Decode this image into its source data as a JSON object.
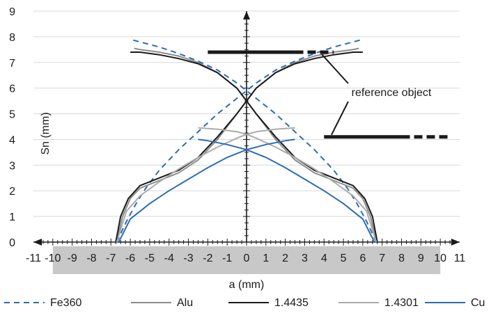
{
  "chart_data": {
    "type": "line",
    "title": "",
    "xlabel": "a (mm)",
    "ylabel": "Sn (mm)",
    "xlim": [
      -11,
      11
    ],
    "ylim": [
      0,
      9
    ],
    "x_ticks": [
      -11,
      -10,
      -9,
      -8,
      -7,
      -6,
      -5,
      -4,
      -3,
      -2,
      -1,
      0,
      1,
      2,
      3,
      4,
      5,
      6,
      7,
      8,
      9,
      10,
      11
    ],
    "y_ticks": [
      0,
      1,
      2,
      3,
      4,
      5,
      6,
      7,
      8,
      9
    ],
    "grid": "horizontal",
    "legend_position": "bottom",
    "shaded_band": {
      "x": [
        -10,
        10
      ],
      "color": "#c8c8c8"
    },
    "series": [
      {
        "name": "Fe360",
        "color": "#2b6cb5",
        "dash": "dashed",
        "curves": [
          [
            [
              -6.7,
              0
            ],
            [
              -6.2,
              0.8
            ],
            [
              -5.7,
              1.5
            ],
            [
              -5.2,
              2.1
            ],
            [
              -4.5,
              2.8
            ],
            [
              -3.5,
              3.6
            ],
            [
              -2.5,
              4.3
            ],
            [
              -1.5,
              5.0
            ],
            [
              -0.5,
              5.6
            ],
            [
              0,
              5.9
            ],
            [
              0.5,
              6.2
            ],
            [
              1.5,
              6.7
            ],
            [
              2.5,
              7.05
            ],
            [
              3.5,
              7.35
            ],
            [
              4.5,
              7.6
            ],
            [
              5.5,
              7.8
            ],
            [
              6,
              7.9
            ]
          ],
          [
            [
              6.7,
              0
            ],
            [
              6.2,
              0.8
            ],
            [
              5.7,
              1.5
            ],
            [
              5.2,
              2.1
            ],
            [
              4.5,
              2.8
            ],
            [
              3.5,
              3.6
            ],
            [
              2.5,
              4.3
            ],
            [
              1.5,
              5.0
            ],
            [
              0.5,
              5.6
            ],
            [
              0,
              5.9
            ],
            [
              -0.5,
              6.2
            ],
            [
              -1.5,
              6.7
            ],
            [
              -2.5,
              7.05
            ],
            [
              -3.5,
              7.35
            ],
            [
              -4.5,
              7.6
            ],
            [
              -5.5,
              7.8
            ],
            [
              -6,
              7.9
            ]
          ]
        ]
      },
      {
        "name": "Alu",
        "color": "#8c8c8c",
        "dash": "solid",
        "curves": [
          [
            [
              -6.7,
              0
            ],
            [
              -6.4,
              1.0
            ],
            [
              -6.0,
              1.7
            ],
            [
              -5.5,
              2.1
            ],
            [
              -4.5,
              2.4
            ],
            [
              -3.5,
              2.7
            ],
            [
              -2.5,
              3.2
            ],
            [
              -1.5,
              4.0
            ],
            [
              -0.5,
              5.0
            ],
            [
              0,
              5.5
            ],
            [
              0.5,
              6.0
            ],
            [
              1.5,
              6.6
            ],
            [
              2.5,
              7.0
            ],
            [
              3.5,
              7.25
            ],
            [
              4.5,
              7.4
            ],
            [
              5.5,
              7.5
            ],
            [
              5.8,
              7.55
            ]
          ],
          [
            [
              6.7,
              0
            ],
            [
              6.4,
              1.0
            ],
            [
              6.0,
              1.7
            ],
            [
              5.5,
              2.1
            ],
            [
              4.5,
              2.4
            ],
            [
              3.5,
              2.7
            ],
            [
              2.5,
              3.2
            ],
            [
              1.5,
              4.0
            ],
            [
              0.5,
              5.0
            ],
            [
              0,
              5.5
            ],
            [
              -0.5,
              6.0
            ],
            [
              -1.5,
              6.6
            ],
            [
              -2.5,
              7.0
            ],
            [
              -3.5,
              7.25
            ],
            [
              -4.5,
              7.4
            ],
            [
              -5.5,
              7.5
            ],
            [
              -5.8,
              7.55
            ]
          ]
        ]
      },
      {
        "name": "1.4435",
        "color": "#1a1a1a",
        "dash": "solid",
        "curves": [
          [
            [
              -6.75,
              0
            ],
            [
              -6.5,
              1.0
            ],
            [
              -6.1,
              1.7
            ],
            [
              -5.5,
              2.2
            ],
            [
              -4.5,
              2.5
            ],
            [
              -3.5,
              2.8
            ],
            [
              -2.5,
              3.3
            ],
            [
              -1.5,
              4.1
            ],
            [
              -0.5,
              5.0
            ],
            [
              0,
              5.5
            ],
            [
              0.5,
              6.0
            ],
            [
              1.5,
              6.6
            ],
            [
              2.5,
              6.95
            ],
            [
              3.5,
              7.15
            ],
            [
              4.5,
              7.3
            ],
            [
              5.5,
              7.4
            ],
            [
              6.0,
              7.4
            ]
          ],
          [
            [
              6.75,
              0
            ],
            [
              6.5,
              1.0
            ],
            [
              6.1,
              1.7
            ],
            [
              5.5,
              2.2
            ],
            [
              4.5,
              2.5
            ],
            [
              3.5,
              2.8
            ],
            [
              2.5,
              3.3
            ],
            [
              1.5,
              4.1
            ],
            [
              0.5,
              5.0
            ],
            [
              0,
              5.5
            ],
            [
              -0.5,
              6.0
            ],
            [
              -1.5,
              6.6
            ],
            [
              -2.5,
              6.95
            ],
            [
              -3.5,
              7.15
            ],
            [
              -4.5,
              7.3
            ],
            [
              -5.5,
              7.4
            ],
            [
              -6.0,
              7.4
            ]
          ]
        ]
      },
      {
        "name": "1.4301",
        "color": "#ababab",
        "dash": "solid",
        "curves": [
          [
            [
              -6.7,
              0
            ],
            [
              -6.2,
              1.2
            ],
            [
              -5.5,
              1.8
            ],
            [
              -4.5,
              2.35
            ],
            [
              -3.5,
              2.85
            ],
            [
              -2.5,
              3.3
            ],
            [
              -1.5,
              3.7
            ],
            [
              -0.5,
              4.05
            ],
            [
              0,
              4.2
            ],
            [
              0.5,
              4.3
            ],
            [
              1.5,
              4.4
            ],
            [
              2.5,
              4.45
            ]
          ],
          [
            [
              6.7,
              0
            ],
            [
              6.2,
              1.2
            ],
            [
              5.5,
              1.8
            ],
            [
              4.5,
              2.35
            ],
            [
              3.5,
              2.85
            ],
            [
              2.5,
              3.3
            ],
            [
              1.5,
              3.7
            ],
            [
              0.5,
              4.05
            ],
            [
              0,
              4.2
            ],
            [
              -0.5,
              4.3
            ],
            [
              -1.5,
              4.4
            ],
            [
              -2.5,
              4.45
            ]
          ]
        ]
      },
      {
        "name": "Cu",
        "color": "#2b6cb5",
        "dash": "solid",
        "curves": [
          [
            [
              -6.6,
              0
            ],
            [
              -6.0,
              0.9
            ],
            [
              -5.0,
              1.5
            ],
            [
              -4.0,
              2.0
            ],
            [
              -3.0,
              2.45
            ],
            [
              -2.0,
              2.9
            ],
            [
              -1.0,
              3.3
            ],
            [
              0,
              3.6
            ],
            [
              1.0,
              3.8
            ],
            [
              2.0,
              3.95
            ],
            [
              2.5,
              4.0
            ]
          ],
          [
            [
              6.6,
              0
            ],
            [
              6.0,
              0.9
            ],
            [
              5.0,
              1.5
            ],
            [
              4.0,
              2.0
            ],
            [
              3.0,
              2.45
            ],
            [
              2.0,
              2.9
            ],
            [
              1.0,
              3.3
            ],
            [
              0,
              3.6
            ],
            [
              -1.0,
              3.8
            ],
            [
              -2.0,
              3.95
            ],
            [
              -2.5,
              4.0
            ]
          ]
        ]
      }
    ],
    "annotations": {
      "label": "reference object",
      "reference_objects": [
        {
          "y": 7.4,
          "x_solid": [
            -2.0,
            2.5
          ],
          "x_dashed": [
            2.5,
            4.5
          ]
        },
        {
          "y": 4.1,
          "x_solid": [
            4.0,
            8.0
          ],
          "x_dashed": [
            8.0,
            10.5
          ]
        }
      ]
    }
  }
}
